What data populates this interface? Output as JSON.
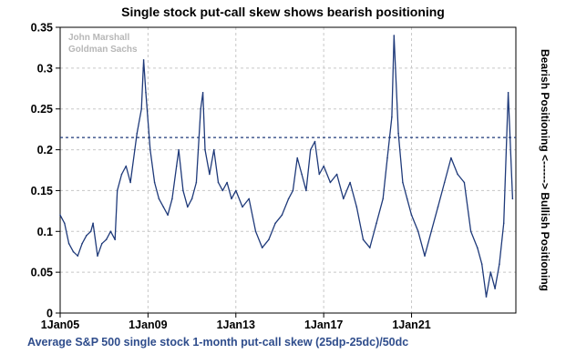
{
  "chart_data": {
    "type": "line",
    "title": "Single stock put-call skew shows bearish positioning",
    "xlabel": "Average S&P 500 single stock 1-month put-call skew (25dp-25dc)/50dc",
    "ylabel": "Bearish Positioning <------> Bullish Positioning",
    "watermark": [
      "John Marshall",
      "Goldman Sachs"
    ],
    "xlim": [
      2005.0,
      2025.75
    ],
    "ylim": [
      0,
      0.35
    ],
    "x_ticks": [
      2005,
      2009,
      2013,
      2017,
      2021
    ],
    "x_tick_labels": [
      "1Jan05",
      "1Jan09",
      "1Jan13",
      "1Jan17",
      "1Jan21"
    ],
    "y_ticks": [
      0,
      0.05,
      0.1,
      0.15,
      0.2,
      0.25,
      0.3,
      0.35
    ],
    "y_tick_labels": [
      "0",
      "0.05",
      "0.1",
      "0.15",
      "0.2",
      "0.25",
      "0.3",
      "0.35"
    ],
    "grid": true,
    "colors": {
      "series": "#1f3a7a",
      "reference": "#1f3a7a",
      "footer": "#2f4d8c"
    },
    "reference_line": {
      "y": 0.215,
      "style": "dashed"
    },
    "series": [
      {
        "x": [
          2005.0,
          2005.2,
          2005.4,
          2005.6,
          2005.8,
          2006.0,
          2006.2,
          2006.4,
          2006.5,
          2006.7,
          2006.9,
          2007.1,
          2007.3,
          2007.5,
          2007.6,
          2007.8,
          2008.0,
          2008.2,
          2008.4,
          2008.5,
          2008.7,
          2008.8,
          2008.9,
          2009.1,
          2009.3,
          2009.5,
          2009.7,
          2009.9,
          2010.1,
          2010.3,
          2010.4,
          2010.6,
          2010.8,
          2011.0,
          2011.2,
          2011.4,
          2011.5,
          2011.6,
          2011.8,
          2012.0,
          2012.2,
          2012.4,
          2012.6,
          2012.8,
          2013.0,
          2013.3,
          2013.6,
          2013.9,
          2014.2,
          2014.5,
          2014.8,
          2015.1,
          2015.4,
          2015.6,
          2015.8,
          2016.0,
          2016.2,
          2016.4,
          2016.6,
          2016.8,
          2017.0,
          2017.3,
          2017.6,
          2017.9,
          2018.2,
          2018.5,
          2018.8,
          2019.1,
          2019.4,
          2019.7,
          2019.9,
          2020.1,
          2020.2,
          2020.4,
          2020.6,
          2020.8,
          2021.0,
          2021.3,
          2021.6,
          2021.9,
          2022.2,
          2022.5,
          2022.8,
          2023.1,
          2023.4,
          2023.7,
          2024.0,
          2024.2,
          2024.4,
          2024.6,
          2024.8,
          2025.0,
          2025.2,
          2025.4,
          2025.6
        ],
        "values": [
          0.12,
          0.11,
          0.085,
          0.075,
          0.07,
          0.085,
          0.095,
          0.1,
          0.11,
          0.07,
          0.085,
          0.09,
          0.1,
          0.09,
          0.15,
          0.17,
          0.18,
          0.16,
          0.2,
          0.22,
          0.25,
          0.31,
          0.27,
          0.2,
          0.16,
          0.14,
          0.13,
          0.12,
          0.14,
          0.18,
          0.2,
          0.15,
          0.13,
          0.14,
          0.16,
          0.25,
          0.27,
          0.2,
          0.17,
          0.2,
          0.16,
          0.15,
          0.16,
          0.14,
          0.15,
          0.13,
          0.14,
          0.1,
          0.08,
          0.09,
          0.11,
          0.12,
          0.14,
          0.15,
          0.19,
          0.17,
          0.15,
          0.2,
          0.21,
          0.17,
          0.18,
          0.16,
          0.17,
          0.14,
          0.16,
          0.13,
          0.09,
          0.08,
          0.11,
          0.14,
          0.19,
          0.24,
          0.34,
          0.22,
          0.16,
          0.14,
          0.12,
          0.1,
          0.07,
          0.1,
          0.13,
          0.16,
          0.19,
          0.17,
          0.16,
          0.1,
          0.08,
          0.06,
          0.02,
          0.05,
          0.03,
          0.06,
          0.11,
          0.27,
          0.14
        ]
      }
    ]
  }
}
